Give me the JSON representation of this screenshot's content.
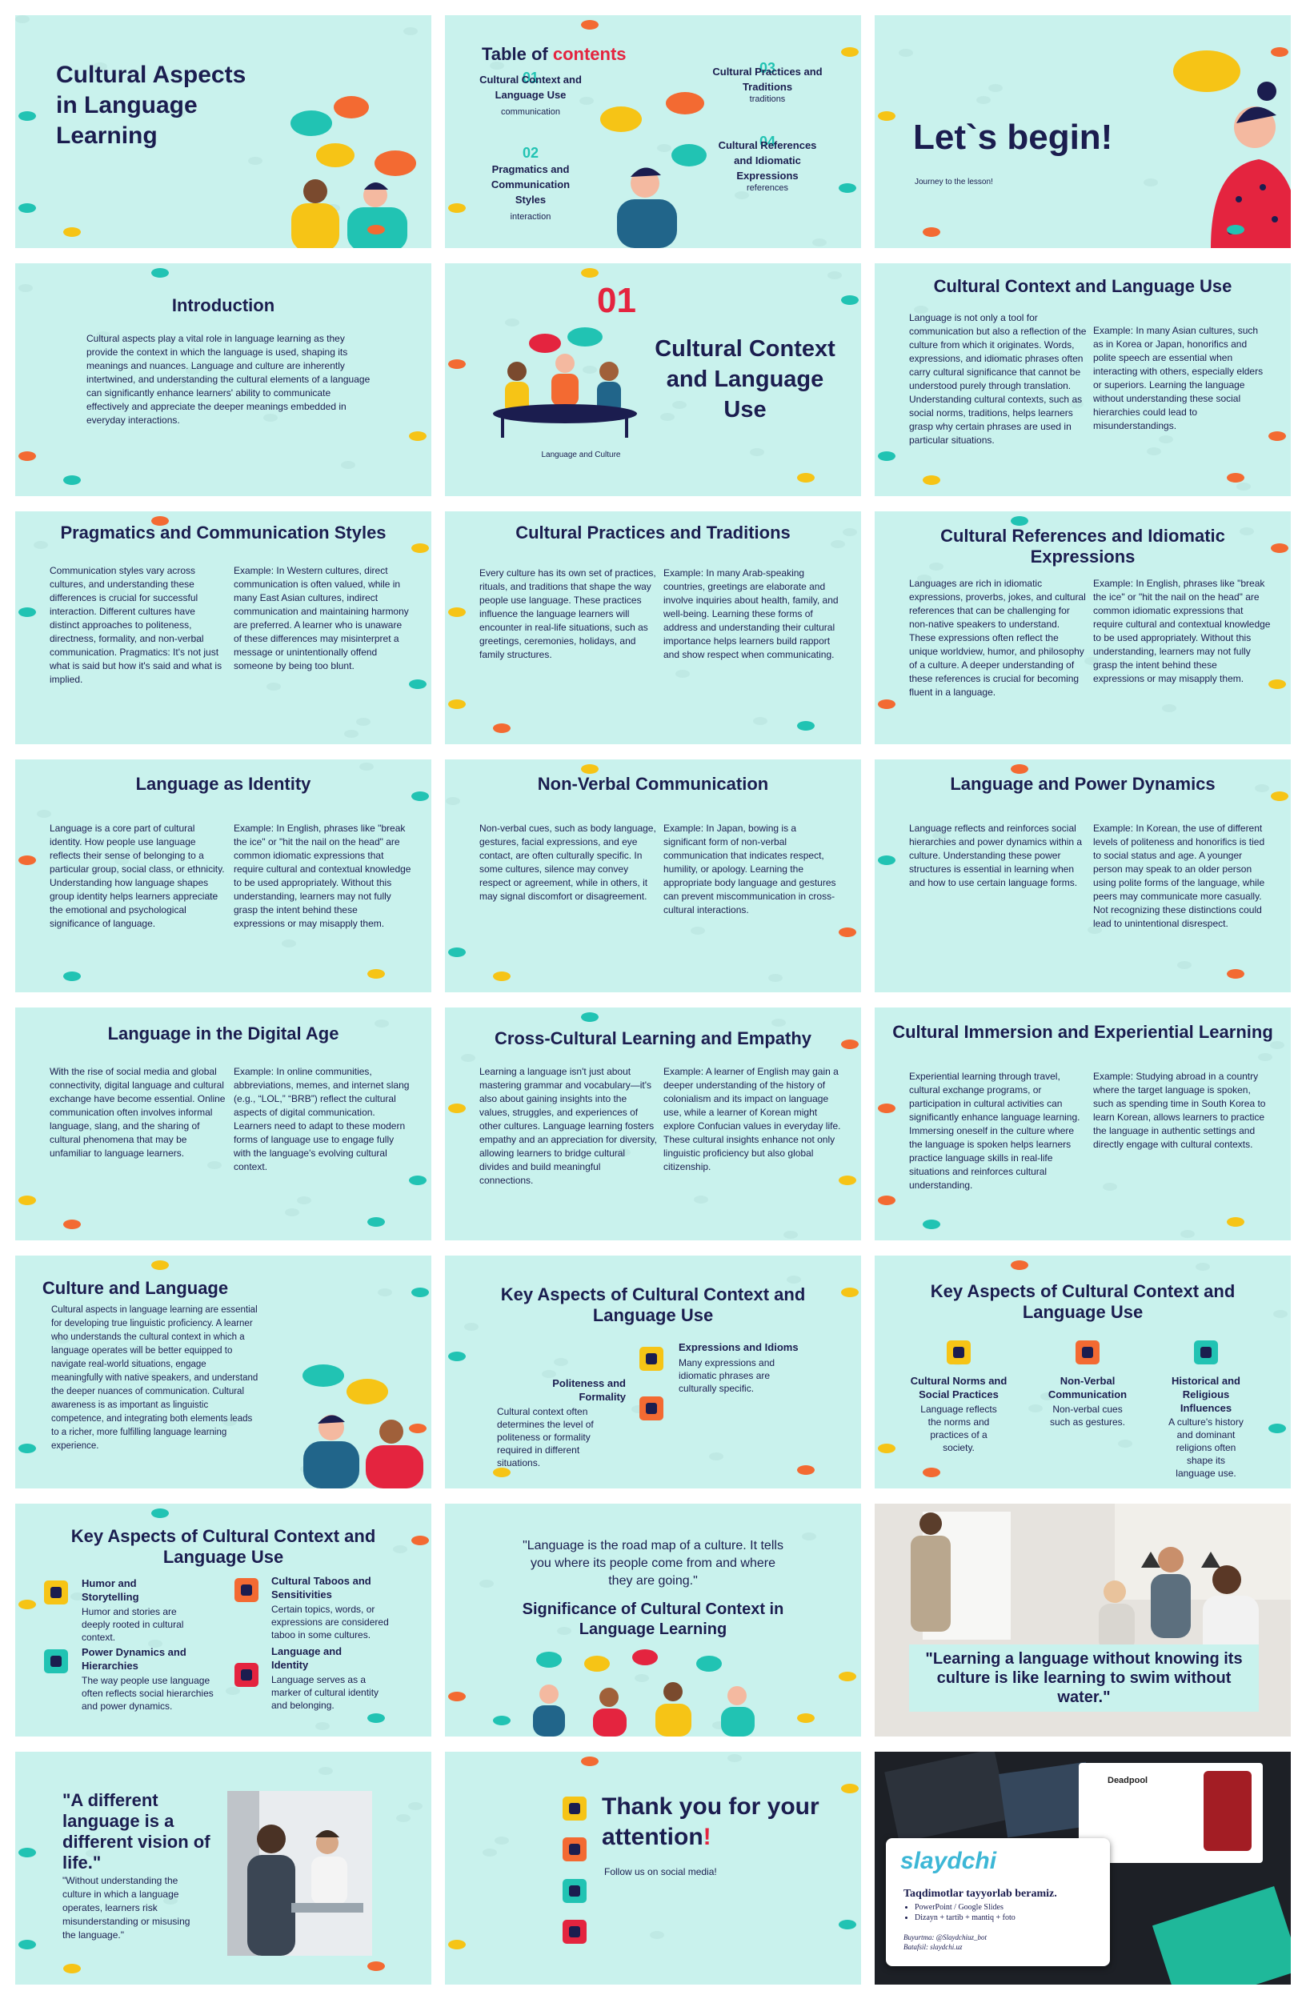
{
  "slides": [
    {
      "title": "Cultural Aspects in Language Learning"
    },
    {
      "title": "Table of",
      "title_highlight": "contents",
      "items": [
        {
          "number": "01",
          "title": "Cultural Context and Language Use",
          "subtitle": "communication"
        },
        {
          "number": "02",
          "title": "Pragmatics and Communication Styles",
          "subtitle": "interaction"
        },
        {
          "number": "03",
          "title": "Cultural Practices and Traditions",
          "subtitle": "traditions"
        },
        {
          "number": "04",
          "title": "Cultural References and Idiomatic Expressions",
          "subtitle": "references"
        }
      ]
    },
    {
      "title": "Let`s begin!",
      "subtitle": "Journey to the lesson!"
    },
    {
      "title": "Introduction",
      "text": "Cultural aspects play a vital role in language learning as they provide the context in which the language is used, shaping its meanings and nuances. Language and culture are inherently intertwined, and understanding the cultural elements of a language can significantly enhance learners' ability to communicate effectively and appreciate the deeper meanings embedded in everyday interactions."
    },
    {
      "number": "01",
      "title": "Cultural Context and Language Use",
      "subtitle": "Language and Culture"
    },
    {
      "title": "Cultural Context and Language Use",
      "columns": [
        "Language is not only a tool for communication but also a reflection of the culture from which it originates. Words, expressions, and idiomatic phrases often carry cultural significance that cannot be understood purely through translation. Understanding cultural contexts, such as social norms, traditions, helps learners grasp why certain phrases are used in particular situations.",
        "Example: In many Asian cultures, such as in Korea or Japan, honorifics and polite speech are essential when interacting with others, especially elders or superiors. Learning the language without understanding these social hierarchies could lead to misunderstandings."
      ]
    },
    {
      "title": "Pragmatics and Communication Styles",
      "columns": [
        "Communication styles vary across cultures, and understanding these differences is crucial for successful interaction. Different cultures have distinct approaches to politeness, directness, formality, and non-verbal communication. Pragmatics: It's not just what is said but how it's said and what is implied.",
        "Example: In Western cultures, direct communication is often valued, while in many East Asian cultures, indirect communication and maintaining harmony are preferred. A learner who is unaware of these differences may misinterpret a message or unintentionally offend someone by being too blunt."
      ]
    },
    {
      "title": "Cultural Practices and Traditions",
      "columns": [
        "Every culture has its own set of practices, rituals, and traditions that shape the way people use language. These practices influence the language learners will encounter in real-life situations, such as greetings, ceremonies, holidays, and family structures.",
        "Example: In many Arab-speaking countries, greetings are elaborate and involve inquiries about health, family, and well-being. Learning these forms of address and understanding their cultural importance helps learners build rapport and show respect when communicating."
      ]
    },
    {
      "title": "Cultural References and Idiomatic Expressions",
      "columns": [
        "Languages are rich in idiomatic expressions, proverbs, jokes, and cultural references that can be challenging for non-native speakers to understand. These expressions often reflect the unique worldview, humor, and philosophy of a culture. A deeper understanding of these references is crucial for becoming fluent in a language.",
        "Example: In English, phrases like \"break the ice\" or \"hit the nail on the head\" are common idiomatic expressions that require cultural and contextual knowledge to be used appropriately. Without this understanding, learners may not fully grasp the intent behind these expressions or may misapply them."
      ]
    },
    {
      "title": "Language as Identity",
      "columns": [
        "Language is a core part of cultural identity. How people use language reflects their sense of belonging to a particular group, social class, or ethnicity. Understanding how language shapes group identity helps learners appreciate the emotional and psychological significance of language.",
        "Example: In English, phrases like \"break the ice\" or \"hit the nail on the head\" are common idiomatic expressions that require cultural and contextual knowledge to be used appropriately. Without this understanding, learners may not fully grasp the intent behind these expressions or may misapply them."
      ]
    },
    {
      "title": "Non-Verbal Communication",
      "columns": [
        "Non-verbal cues, such as body language, gestures, facial expressions, and eye contact, are often culturally specific. In some cultures, silence may convey respect or agreement, while in others, it may signal discomfort or disagreement.",
        "Example: In Japan, bowing is a significant form of non-verbal communication that indicates respect, humility, or apology. Learning the appropriate body language and gestures can prevent miscommunication in cross-cultural interactions."
      ]
    },
    {
      "title": "Language and Power Dynamics",
      "columns": [
        "Language reflects and reinforces social hierarchies and power dynamics within a culture. Understanding these power structures is essential in learning when and how to use certain language forms.",
        "Example: In Korean, the use of different levels of politeness and honorifics is tied to social status and age. A younger person may speak to an older person using polite forms of the language, while peers may communicate more casually. Not recognizing these distinctions could lead to unintentional disrespect."
      ]
    },
    {
      "title": "Language in the Digital Age",
      "columns": [
        "With the rise of social media and global connectivity, digital language and cultural exchange have become essential. Online communication often involves informal language, slang, and the sharing of cultural phenomena that may be unfamiliar to language learners.",
        "Example: In online communities, abbreviations, memes, and internet slang (e.g., “LOL,” “BRB”) reflect the cultural aspects of digital communication. Learners need to adapt to these modern forms of language use to engage fully with the language's evolving cultural context."
      ]
    },
    {
      "title": "Cross-Cultural Learning and Empathy",
      "columns": [
        "Learning a language isn't just about mastering grammar and vocabulary—it's also about gaining insights into the values, struggles, and experiences of other cultures. Language learning fosters empathy and an appreciation for diversity, allowing learners to bridge cultural divides and build meaningful connections.",
        "Example: A learner of English may gain a deeper understanding of the history of colonialism and its impact on language use, while a learner of Korean might explore Confucian values in everyday life. These cultural insights enhance not only linguistic proficiency but also global citizenship."
      ]
    },
    {
      "title": "Cultural Immersion and Experiential Learning",
      "columns": [
        "Experiential learning through travel, cultural exchange programs, or participation in cultural activities can significantly enhance language learning. Immersing oneself in the culture where the language is spoken helps learners practice language skills in real-life situations and reinforces cultural understanding.",
        "Example: Studying abroad in a country where the target language is spoken, such as spending time in South Korea to learn Korean, allows learners to practice the language in authentic settings and directly engage with cultural contexts."
      ]
    },
    {
      "title": "Culture and Language",
      "text": "Cultural aspects in language learning are essential for developing true linguistic proficiency. A learner who understands the cultural context in which a language operates will be better equipped to navigate real-world situations, engage meaningfully with native speakers, and understand the deeper nuances of communication. Cultural awareness is as important as linguistic competence, and integrating both elements leads to a richer, more fulfilling language learning experience."
    },
    {
      "title": "Key Aspects of Cultural Context and Language Use",
      "items": [
        {
          "title": "Expressions and Idioms",
          "text": "Many expressions and idiomatic phrases are culturally specific."
        },
        {
          "title": "Politeness and Formality",
          "text": "Cultural context often determines the level of politeness or formality required in different situations."
        }
      ]
    },
    {
      "title": "Key Aspects of Cultural Context and Language Use",
      "items": [
        {
          "title": "Cultural Norms and Social Practices",
          "text": "Language reflects the norms and practices of a society."
        },
        {
          "title": "Non-Verbal Communication",
          "text": "Non-verbal cues such as gestures."
        },
        {
          "title": "Historical and Religious Influences",
          "text": "A culture's history and dominant religions often shape its language use."
        }
      ]
    },
    {
      "title": "Key Aspects of Cultural Context and Language Use",
      "items": [
        {
          "title": "Humor and Storytelling",
          "text": "Humor and stories are deeply rooted in cultural context."
        },
        {
          "title": "Cultural Taboos and Sensitivities",
          "text": "Certain topics, words, or expressions are considered taboo in some cultures."
        },
        {
          "title": "Power Dynamics and Hierarchies",
          "text": "The way people use language often reflects social hierarchies and power dynamics."
        },
        {
          "title": "Language and Identity",
          "text": "Language serves as a marker of cultural identity and belonging."
        }
      ]
    },
    {
      "quote": "\"Language is the road map of a culture. It tells you where its people come from and where they are going.\"",
      "title": "Significance of Cultural Context in Language Learning"
    },
    {
      "quote": "\"Learning a language without knowing its culture is like learning to swim without water.\""
    },
    {
      "quote": "\"A different language is a different vision of life.\"",
      "text": "\"Without understanding the culture in which a language operates, learners risk misunderstanding or misusing the language.\""
    },
    {
      "title": "Thank you for your attention",
      "title_mark": "!",
      "subtitle": "Follow us on social media!"
    },
    {
      "brand": "slaydchi",
      "headline": "Taqdimotlar tayyorlab beramiz.",
      "bullets": [
        "PowerPoint / Google Slides",
        "Dizayn + tartib + mantiq + foto"
      ],
      "contacts": [
        "Buyurtma: @Slaydchiuz_bot",
        "Batafsil: slaydchi.uz"
      ],
      "card_title": "Deadpool"
    }
  ]
}
